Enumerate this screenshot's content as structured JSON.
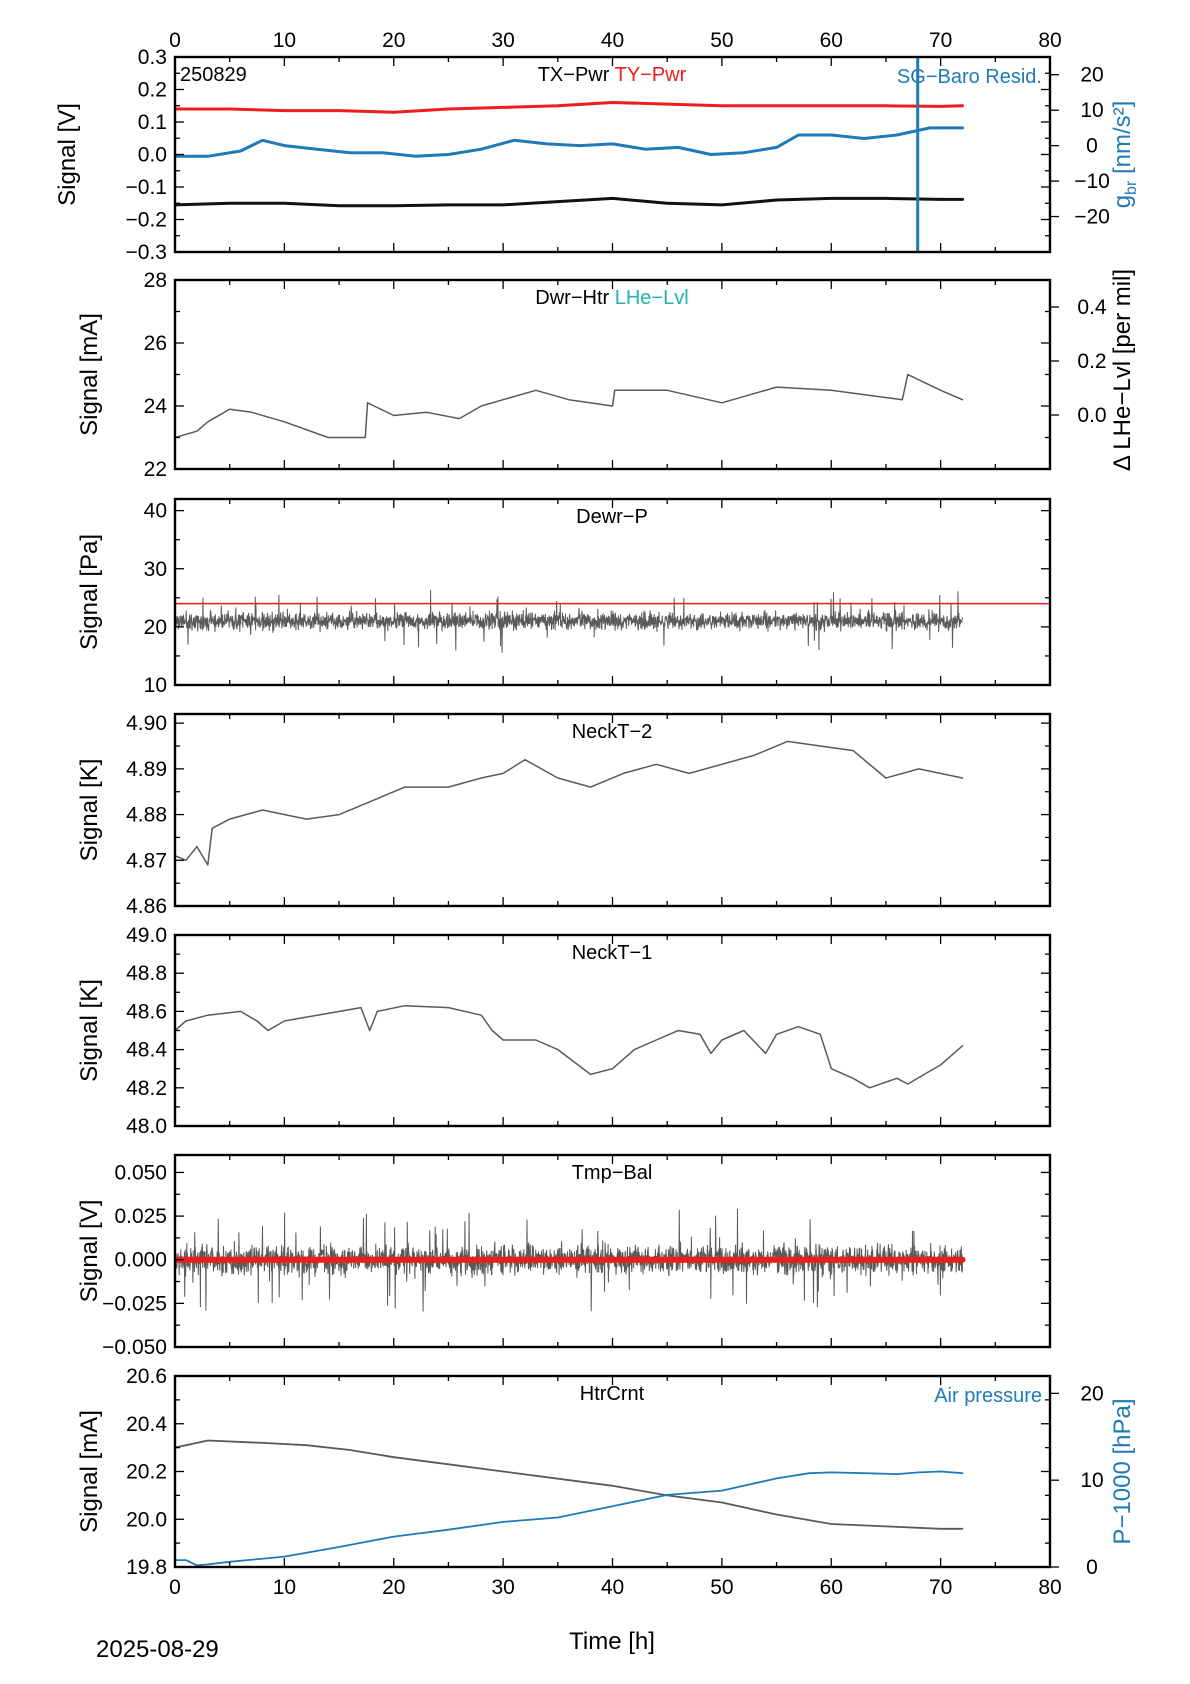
{
  "date_label": "2025-08-29",
  "x_axis": {
    "label": "Time [h]",
    "range": [
      0,
      80
    ],
    "ticks": [
      "0",
      "10",
      "20",
      "30",
      "40",
      "50",
      "60",
      "70",
      "80"
    ]
  },
  "chart_data": [
    {
      "type": "line",
      "tag": "250829",
      "titles": [
        {
          "text": "TX−Pwr",
          "color": "#000000"
        },
        {
          "text": "TY−Pwr",
          "color": "#ee1c1c"
        }
      ],
      "ylabel": "Signal [V]",
      "ylim": [
        -0.3,
        0.3
      ],
      "yticks": [
        "−0.3",
        "−0.2",
        "−0.1",
        "0.0",
        "0.1",
        "0.2",
        "0.3"
      ],
      "y2label": "g_br [nm/s²]",
      "y2lim": [
        -30,
        25
      ],
      "y2ticks": [
        "−20",
        "−10",
        "0",
        "10",
        "20"
      ],
      "y2_series_title": "SG−Baro Resid.",
      "series": [
        {
          "name": "TY−Pwr",
          "axis": "left",
          "color": "#ee1c1c",
          "width": 3,
          "x": [
            0,
            5,
            10,
            15,
            20,
            25,
            30,
            35,
            40,
            45,
            50,
            55,
            60,
            65,
            70,
            72
          ],
          "y": [
            0.14,
            0.14,
            0.135,
            0.135,
            0.13,
            0.14,
            0.145,
            0.15,
            0.16,
            0.155,
            0.15,
            0.15,
            0.15,
            0.15,
            0.148,
            0.15
          ]
        },
        {
          "name": "TX−Pwr",
          "axis": "left",
          "color": "#111111",
          "width": 3,
          "x": [
            0,
            5,
            10,
            15,
            20,
            25,
            30,
            35,
            40,
            45,
            50,
            55,
            60,
            65,
            70,
            72
          ],
          "y": [
            -0.155,
            -0.15,
            -0.15,
            -0.158,
            -0.158,
            -0.155,
            -0.155,
            -0.145,
            -0.135,
            -0.15,
            -0.155,
            -0.14,
            -0.135,
            -0.135,
            -0.138,
            -0.138
          ]
        },
        {
          "name": "SG−Baro Resid.",
          "axis": "right",
          "color": "#1f7ab8",
          "width": 3,
          "x": [
            0,
            3,
            6,
            8,
            10,
            13,
            16,
            19,
            22,
            25,
            28,
            31,
            34,
            37,
            40,
            43,
            46,
            49,
            52,
            55,
            57,
            60,
            63,
            66,
            69,
            72
          ],
          "y": [
            -3,
            -3,
            -1.5,
            1.5,
            0,
            -1,
            -2,
            -2,
            -3,
            -2.5,
            -1,
            1.5,
            0.5,
            0,
            0.5,
            -1,
            -0.5,
            -2.5,
            -2,
            -0.5,
            3,
            3,
            2,
            3,
            5,
            5
          ]
        },
        {
          "name": "SG−Baro Resid. spike",
          "axis": "right",
          "color": "#1f7ab8",
          "width": 3,
          "x": [
            67.9,
            67.9
          ],
          "y": [
            -30,
            25
          ]
        }
      ]
    },
    {
      "type": "line",
      "titles": [
        {
          "text": "Dwr−Htr",
          "color": "#000000"
        },
        {
          "text": "LHe−Lvl",
          "color": "#1fb3ad"
        }
      ],
      "ylabel": "Signal [mA]",
      "ylim": [
        22,
        28
      ],
      "yticks": [
        "22",
        "24",
        "26",
        "28"
      ],
      "y2label": "Δ LHe−Lvl [per mil]",
      "y2lim": [
        -0.2,
        0.5
      ],
      "y2ticks": [
        "0.0",
        "0.2",
        "0.4"
      ],
      "series": [
        {
          "name": "Dwr−Htr",
          "axis": "left",
          "color": "#5a5a5a",
          "width": 1.5,
          "x": [
            0,
            2,
            3,
            5,
            7,
            10,
            14,
            17.4,
            17.6,
            20,
            23,
            26,
            28,
            30,
            33,
            36,
            40,
            40.2,
            45,
            50,
            55,
            60,
            66.5,
            67,
            70,
            72
          ],
          "y": [
            23,
            23.2,
            23.5,
            23.9,
            23.8,
            23.5,
            23.0,
            23.0,
            24.1,
            23.7,
            23.8,
            23.6,
            24.0,
            24.2,
            24.5,
            24.2,
            24.0,
            24.5,
            24.5,
            24.1,
            24.6,
            24.5,
            24.2,
            25.0,
            24.5,
            24.2
          ]
        }
      ]
    },
    {
      "type": "line",
      "titles": [
        {
          "text": "Dewr−P",
          "color": "#000000"
        }
      ],
      "ylabel": "Signal [Pa]",
      "ylim": [
        10,
        42
      ],
      "yticks": [
        "10",
        "20",
        "30",
        "40"
      ],
      "reference_line": {
        "y": 24,
        "color": "#ee1c1c"
      },
      "series": [
        {
          "name": "Dewr−P",
          "axis": "left",
          "color": "#5a5a5a",
          "width": 1,
          "noise_band": {
            "x0": 0,
            "x1": 72,
            "center": 21,
            "half_width": 2.2,
            "spread": 5.5,
            "seed": 11
          }
        }
      ]
    },
    {
      "type": "line",
      "titles": [
        {
          "text": "NeckT−2",
          "color": "#000000"
        }
      ],
      "ylabel": "Signal [K]",
      "ylim": [
        4.86,
        4.902
      ],
      "yticks": [
        "4.86",
        "4.87",
        "4.88",
        "4.89",
        "4.90"
      ],
      "series": [
        {
          "name": "NeckT−2",
          "axis": "left",
          "color": "#5a5a5a",
          "width": 1.5,
          "x": [
            0,
            1,
            2,
            3,
            3.4,
            5,
            8,
            12,
            15,
            18,
            21,
            25,
            28,
            30,
            32,
            35,
            38,
            41,
            44,
            47,
            50,
            53,
            56,
            59,
            62,
            65,
            68,
            72
          ],
          "y": [
            4.871,
            4.87,
            4.873,
            4.869,
            4.877,
            4.879,
            4.881,
            4.879,
            4.88,
            4.883,
            4.886,
            4.886,
            4.888,
            4.889,
            4.892,
            4.888,
            4.886,
            4.889,
            4.891,
            4.889,
            4.891,
            4.893,
            4.896,
            4.895,
            4.894,
            4.888,
            4.89,
            4.888
          ]
        }
      ]
    },
    {
      "type": "line",
      "titles": [
        {
          "text": "NeckT−1",
          "color": "#000000"
        }
      ],
      "ylabel": "Signal [K]",
      "ylim": [
        48.0,
        49.0
      ],
      "yticks": [
        "48.0",
        "48.2",
        "48.4",
        "48.6",
        "48.8",
        "49.0"
      ],
      "series": [
        {
          "name": "NeckT−1",
          "axis": "left",
          "color": "#5a5a5a",
          "width": 1.5,
          "x": [
            0,
            1,
            3,
            6,
            7.5,
            8.5,
            10,
            13,
            17,
            17.8,
            18.5,
            21,
            25,
            28,
            29,
            30,
            33,
            35,
            38,
            40,
            42,
            44,
            46,
            48,
            49,
            50,
            52,
            54,
            55,
            57,
            59,
            60,
            62,
            63.5,
            66,
            67,
            70,
            72
          ],
          "y": [
            48.5,
            48.55,
            48.58,
            48.6,
            48.55,
            48.5,
            48.55,
            48.58,
            48.62,
            48.5,
            48.6,
            48.63,
            48.62,
            48.58,
            48.5,
            48.45,
            48.45,
            48.4,
            48.27,
            48.3,
            48.4,
            48.45,
            48.5,
            48.48,
            48.38,
            48.45,
            48.5,
            48.38,
            48.48,
            48.52,
            48.48,
            48.3,
            48.25,
            48.2,
            48.25,
            48.22,
            48.32,
            48.42
          ]
        }
      ]
    },
    {
      "type": "line",
      "titles": [
        {
          "text": "Tmp−Bal",
          "color": "#000000"
        }
      ],
      "ylabel": "Signal [V]",
      "ylim": [
        -0.05,
        0.06
      ],
      "yticks": [
        "−0.050",
        "−0.025",
        "0.000",
        "0.025",
        "0.050"
      ],
      "series": [
        {
          "name": "Tmp−Bal",
          "axis": "left",
          "color": "#5a5a5a",
          "width": 1,
          "noise_band": {
            "x0": 0,
            "x1": 72,
            "center": 0,
            "half_width": 0.012,
            "spread": 0.03,
            "seed": 5
          }
        },
        {
          "name": "Tmp−Bal reference",
          "axis": "left",
          "color": "#ee1c1c",
          "width": 6,
          "x": [
            0,
            72
          ],
          "y": [
            0,
            0
          ]
        }
      ]
    },
    {
      "type": "line",
      "titles": [
        {
          "text": "HtrCrnt",
          "color": "#000000"
        }
      ],
      "ylabel": "Signal [mA]",
      "ylim": [
        19.8,
        20.6
      ],
      "yticks": [
        "19.8",
        "20.0",
        "20.2",
        "20.4",
        "20.6"
      ],
      "y2label": "P−1000 [hPa]",
      "y2lim": [
        0,
        22
      ],
      "y2ticks": [
        "0",
        "10",
        "20"
      ],
      "y2_series_title": "Air pressure",
      "series": [
        {
          "name": "HtrCrnt",
          "axis": "left",
          "color": "#5a5a5a",
          "width": 1.8,
          "x": [
            0,
            3,
            8,
            12,
            16,
            20,
            25,
            30,
            35,
            40,
            45,
            50,
            55,
            60,
            65,
            70,
            72
          ],
          "y": [
            20.3,
            20.33,
            20.32,
            20.31,
            20.29,
            20.26,
            20.23,
            20.2,
            20.17,
            20.14,
            20.1,
            20.07,
            20.02,
            19.98,
            19.97,
            19.96,
            19.96
          ]
        },
        {
          "name": "Air pressure",
          "axis": "right",
          "color": "#1f7ab8",
          "width": 1.8,
          "x": [
            0,
            1,
            2,
            3,
            5,
            10,
            15,
            20,
            25,
            30,
            35,
            40,
            45,
            50,
            55,
            58,
            60,
            63,
            66,
            68,
            70,
            72
          ],
          "y": [
            0.8,
            0.8,
            0.2,
            0.3,
            0.6,
            1.2,
            2.3,
            3.5,
            4.3,
            5.2,
            5.7,
            7.0,
            8.3,
            8.8,
            10.2,
            10.8,
            10.9,
            10.8,
            10.7,
            10.9,
            11.0,
            10.8
          ]
        }
      ]
    }
  ]
}
